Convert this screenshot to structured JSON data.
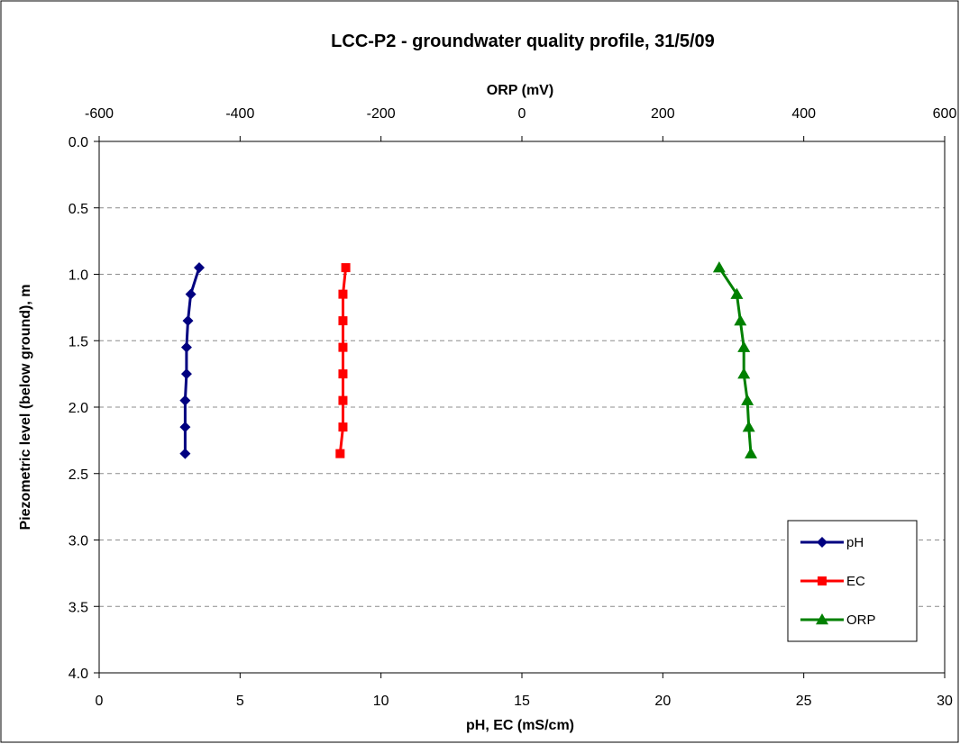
{
  "chart_data": {
    "type": "line",
    "title": "LCC-P2 - groundwater quality profile, 31/5/09",
    "xlabel_bottom": "pH, EC (mS/cm)",
    "xlabel_top": "ORP (mV)",
    "ylabel": "Piezometric level (below ground), m",
    "x_bottom_range": [
      0,
      30
    ],
    "x_bottom_ticks": [
      "0",
      "5",
      "10",
      "15",
      "20",
      "25",
      "30"
    ],
    "x_top_range": [
      -600,
      600
    ],
    "x_top_ticks": [
      "-600",
      "-400",
      "-200",
      "0",
      "200",
      "400",
      "600"
    ],
    "y_range": [
      0,
      4
    ],
    "y_reversed": true,
    "y_ticks": [
      "0.0",
      "0.5",
      "1.0",
      "1.5",
      "2.0",
      "2.5",
      "3.0",
      "3.5",
      "4.0"
    ],
    "grid": "horizontal dashed",
    "legend_position": "bottom-right",
    "series": [
      {
        "name": "pH",
        "axis": "bottom",
        "color": "#000080",
        "marker": "diamond",
        "points": [
          [
            3.55,
            0.95
          ],
          [
            3.25,
            1.15
          ],
          [
            3.15,
            1.35
          ],
          [
            3.1,
            1.55
          ],
          [
            3.1,
            1.75
          ],
          [
            3.05,
            1.95
          ],
          [
            3.05,
            2.15
          ],
          [
            3.05,
            2.35
          ]
        ]
      },
      {
        "name": "EC",
        "axis": "bottom",
        "color": "#ff0000",
        "marker": "square",
        "points": [
          [
            8.75,
            0.95
          ],
          [
            8.65,
            1.15
          ],
          [
            8.65,
            1.35
          ],
          [
            8.65,
            1.55
          ],
          [
            8.65,
            1.75
          ],
          [
            8.65,
            1.95
          ],
          [
            8.65,
            2.15
          ],
          [
            8.55,
            2.35
          ]
        ]
      },
      {
        "name": "ORP",
        "axis": "top",
        "color": "#008000",
        "marker": "triangle",
        "points": [
          [
            280,
            0.95
          ],
          [
            305,
            1.15
          ],
          [
            310,
            1.35
          ],
          [
            315,
            1.55
          ],
          [
            315,
            1.75
          ],
          [
            320,
            1.95
          ],
          [
            322,
            2.15
          ],
          [
            325,
            2.35
          ]
        ]
      }
    ]
  }
}
